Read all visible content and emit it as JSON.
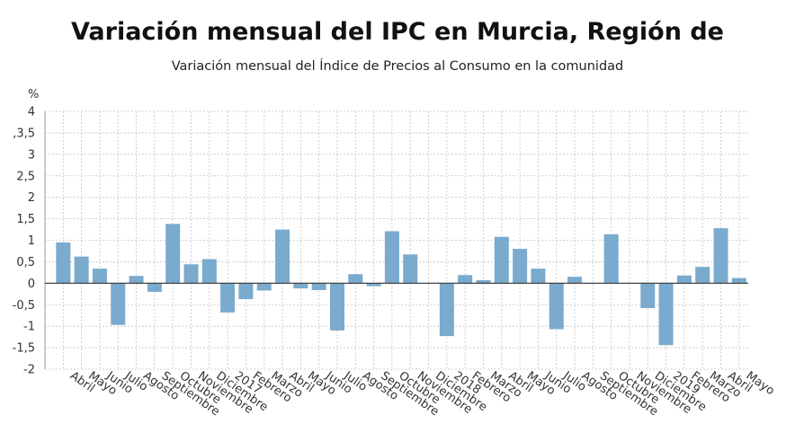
{
  "title": "Variación mensual del IPC en Murcia, Región de",
  "subtitle": "Variación mensual del Índice de Precios al Consumo en la comunidad",
  "chart_data": {
    "type": "bar",
    "title": "Variación mensual del IPC en Murcia, Región de",
    "subtitle": "Variación mensual del Índice de Precios al Consumo en la comunidad",
    "ylabel": "%",
    "ylim": [
      -2,
      4
    ],
    "yticks": [
      4,
      3.5,
      3,
      2.5,
      2,
      1.5,
      1,
      0.5,
      0,
      -0.5,
      -1,
      -1.5,
      -2
    ],
    "ytick_labels": [
      "4",
      ",3,5",
      "3",
      "2,5",
      "2",
      "1,5",
      "1",
      "0,5",
      "0",
      "-0,5",
      "-1",
      "-1,5",
      "-2"
    ],
    "grid": true,
    "color": "#7aaacd",
    "categories": [
      "Abril",
      "Mayo",
      "Junio",
      "Julio",
      "Agosto",
      "Septiembre",
      "Octubre",
      "Noviembre",
      "Diciembre",
      "2017",
      "Febrero",
      "Marzo",
      "Abril",
      "Mayo",
      "Junio",
      "Julio",
      "Agosto",
      "Septiembre",
      "Octubre",
      "Noviembre",
      "Diciembre",
      "2018",
      "Febrero",
      "Marzo",
      "Abril",
      "Mayo",
      "Junio",
      "Julio",
      "Agosto",
      "Septiembre",
      "Octubre",
      "Noviembre",
      "Diciembre",
      "2019",
      "Febrero",
      "Marzo",
      "Abril",
      "Mayo"
    ],
    "values": [
      0.95,
      0.62,
      0.34,
      -0.97,
      0.17,
      -0.2,
      1.38,
      0.44,
      0.56,
      -0.68,
      -0.37,
      -0.17,
      1.25,
      -0.12,
      -0.16,
      -1.1,
      0.21,
      -0.07,
      1.21,
      0.67,
      0.01,
      -1.23,
      0.19,
      0.07,
      1.08,
      0.8,
      0.34,
      -1.07,
      0.15,
      0.0,
      1.14,
      0.0,
      -0.58,
      -1.44,
      0.18,
      0.38,
      1.28,
      0.12
    ]
  }
}
